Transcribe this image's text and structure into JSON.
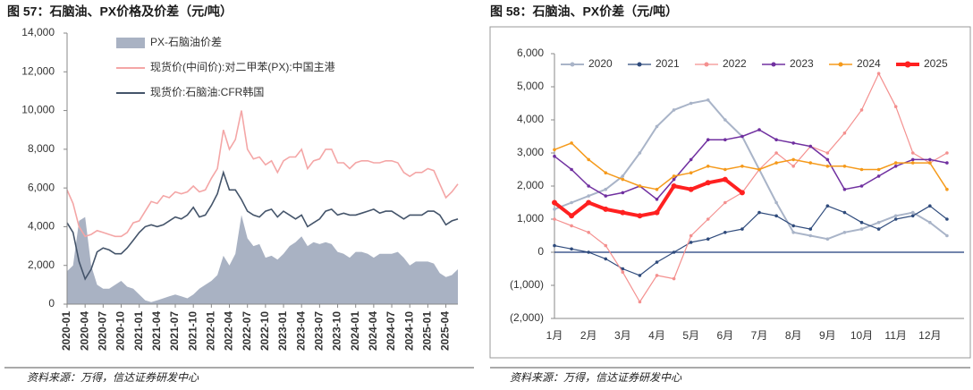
{
  "chart_data": [
    {
      "type": "combo",
      "title": "图 57：石脑油、PX价格及价差（元/吨）",
      "source": "资料来源：万得，信达证券研发中心",
      "categories": [
        "2020-01",
        null,
        null,
        "2020-04",
        null,
        null,
        "2020-07",
        null,
        null,
        "2020-10",
        null,
        null,
        "2021-01",
        null,
        null,
        "2021-04",
        null,
        null,
        "2021-07",
        null,
        null,
        "2021-10",
        null,
        null,
        "2022-01",
        null,
        null,
        "2022-04",
        null,
        null,
        "2022-07",
        null,
        null,
        "2022-10",
        null,
        null,
        "2023-01",
        null,
        null,
        "2023-04",
        null,
        null,
        "2023-07",
        null,
        null,
        "2023-10",
        null,
        null,
        "2024-01",
        null,
        null,
        "2024-04",
        null,
        null,
        "2024-07",
        null,
        null,
        "2024-10",
        null,
        null,
        "2025-01",
        null,
        null,
        "2025-04",
        null,
        null
      ],
      "series": [
        {
          "name": "PX-石脑油价差",
          "type": "area",
          "color": "#a9b2c3",
          "values": [
            1700,
            2000,
            4300,
            4500,
            2000,
            1000,
            800,
            800,
            1000,
            1200,
            900,
            800,
            500,
            200,
            100,
            200,
            300,
            400,
            500,
            400,
            300,
            500,
            800,
            1000,
            1200,
            1500,
            2500,
            2000,
            2600,
            4600,
            3400,
            3000,
            3100,
            2400,
            2500,
            2300,
            2600,
            3000,
            3200,
            3500,
            3000,
            3200,
            3100,
            3200,
            3100,
            2700,
            2600,
            2400,
            2700,
            2700,
            2600,
            2400,
            2600,
            2600,
            2600,
            2700,
            2400,
            2000,
            2200,
            2200,
            2200,
            2100,
            1600,
            1400,
            1500,
            1800
          ]
        },
        {
          "name": "现货价(中间价):对二甲苯(PX):中国主港",
          "type": "line",
          "color": "#f4a6a6",
          "values": [
            5900,
            5200,
            4000,
            3500,
            3600,
            3800,
            3700,
            3600,
            3500,
            3500,
            3700,
            4200,
            4300,
            4800,
            5300,
            5200,
            5600,
            5500,
            5800,
            5700,
            5800,
            6100,
            5800,
            5900,
            6500,
            7000,
            9000,
            8000,
            8500,
            10000,
            8000,
            7500,
            7600,
            7200,
            7400,
            6800,
            7400,
            7600,
            7600,
            8000,
            7000,
            7400,
            7500,
            8000,
            8000,
            7300,
            7300,
            7000,
            7300,
            7400,
            7400,
            7300,
            7300,
            7400,
            7400,
            7300,
            6800,
            6600,
            6800,
            6800,
            7000,
            6900,
            6200,
            5500,
            5800,
            6200
          ]
        },
        {
          "name": "现货价:石脑油:CFR韩国",
          "type": "line",
          "color": "#44546a",
          "values": [
            4200,
            3700,
            2200,
            1300,
            1800,
            2700,
            2900,
            2800,
            2600,
            2600,
            2900,
            3300,
            3700,
            4000,
            4100,
            4000,
            4100,
            4300,
            4500,
            4400,
            4600,
            5000,
            4500,
            4600,
            5100,
            5700,
            6800,
            5900,
            5900,
            5400,
            4800,
            4600,
            4500,
            4800,
            4900,
            4500,
            4800,
            4600,
            4400,
            4600,
            4000,
            4200,
            4400,
            4800,
            4900,
            4600,
            4700,
            4600,
            4600,
            4700,
            4800,
            4900,
            4700,
            4800,
            4800,
            4600,
            4400,
            4600,
            4600,
            4600,
            4800,
            4800,
            4600,
            4100,
            4300,
            4400
          ]
        }
      ],
      "ylim": [
        0,
        14000
      ],
      "yticks": [
        0,
        {
          "value": 2000,
          "label": "2,000"
        },
        {
          "value": 4000,
          "label": "4,000"
        },
        {
          "value": 6000,
          "label": "6,000"
        },
        {
          "value": 8000,
          "label": "8,000"
        },
        {
          "value": 10000,
          "label": "10,000"
        },
        {
          "value": 12000,
          "label": "12,000"
        },
        {
          "value": 14000,
          "label": "14,000"
        }
      ],
      "legend": "upper left"
    },
    {
      "type": "line",
      "title": "图 58：石脑油、PX价差（元/吨）",
      "source": "资料来源：万得，信达证券研发中心",
      "categories": [
        "1月",
        null,
        "2月",
        null,
        "3月",
        null,
        "4月",
        null,
        "5月",
        null,
        "6月",
        null,
        "7月",
        null,
        "8月",
        null,
        "9月",
        null,
        "10月",
        null,
        "11月",
        null,
        "12月",
        null
      ],
      "series": [
        {
          "name": "2020",
          "color": "#a9b4c8",
          "width": 2,
          "values": [
            1300,
            1500,
            1700,
            1900,
            2300,
            3000,
            3800,
            4300,
            4500,
            4600,
            4000,
            3500,
            2500,
            1500,
            600,
            500,
            400,
            600,
            700,
            900,
            1100,
            1200,
            900,
            500
          ]
        },
        {
          "name": "2021",
          "color": "#2f4b7c",
          "width": 1.2,
          "values": [
            200,
            100,
            0,
            -200,
            -500,
            -700,
            -300,
            0,
            300,
            400,
            600,
            700,
            1200,
            1100,
            800,
            700,
            1400,
            1200,
            900,
            700,
            1000,
            1100,
            1400,
            1000
          ]
        },
        {
          "name": "2022",
          "color": "#f4908f",
          "width": 1.2,
          "values": [
            1000,
            800,
            600,
            200,
            -600,
            -1500,
            -700,
            -800,
            500,
            1000,
            1500,
            1800,
            2500,
            3000,
            2600,
            3200,
            3000,
            3600,
            4300,
            5400,
            4400,
            3000,
            2700,
            3000
          ]
        },
        {
          "name": "2023",
          "color": "#7030a0",
          "width": 1.5,
          "values": [
            2900,
            2500,
            2000,
            1700,
            1800,
            2000,
            1600,
            2200,
            2800,
            3400,
            3400,
            3500,
            3700,
            3400,
            3300,
            3200,
            2800,
            1900,
            2000,
            2300,
            2600,
            2800,
            2800,
            2700
          ]
        },
        {
          "name": "2024",
          "color": "#f59a1b",
          "width": 1.5,
          "values": [
            3100,
            3300,
            2800,
            2400,
            2200,
            2000,
            1900,
            2300,
            2400,
            2600,
            2500,
            2600,
            2500,
            2700,
            2800,
            2700,
            2600,
            2600,
            2500,
            2500,
            2700,
            2700,
            2700,
            1900
          ]
        },
        {
          "name": "2025",
          "color": "#ff2020",
          "width": 4,
          "values": [
            1500,
            1100,
            1500,
            1300,
            1200,
            1100,
            1200,
            2000,
            1900,
            2100,
            2200,
            1800,
            null,
            null,
            null,
            null,
            null,
            null,
            null,
            null,
            null,
            null,
            null,
            null
          ]
        }
      ],
      "ylim": [
        -2000,
        6000
      ],
      "yticks": [
        {
          "value": -2000,
          "label": "(2,000)"
        },
        {
          "value": -1000,
          "label": "(1,000)"
        },
        0,
        {
          "value": 1000,
          "label": "1,000"
        },
        {
          "value": 2000,
          "label": "2,000"
        },
        {
          "value": 3000,
          "label": "3,000"
        },
        {
          "value": 4000,
          "label": "4,000"
        },
        {
          "value": 5000,
          "label": "5,000"
        },
        {
          "value": 6000,
          "label": "6,000"
        }
      ],
      "negative_tick_color": "#ff0000",
      "zero_line_color": "#1f3a7a",
      "frame": true,
      "legend": "top"
    }
  ]
}
